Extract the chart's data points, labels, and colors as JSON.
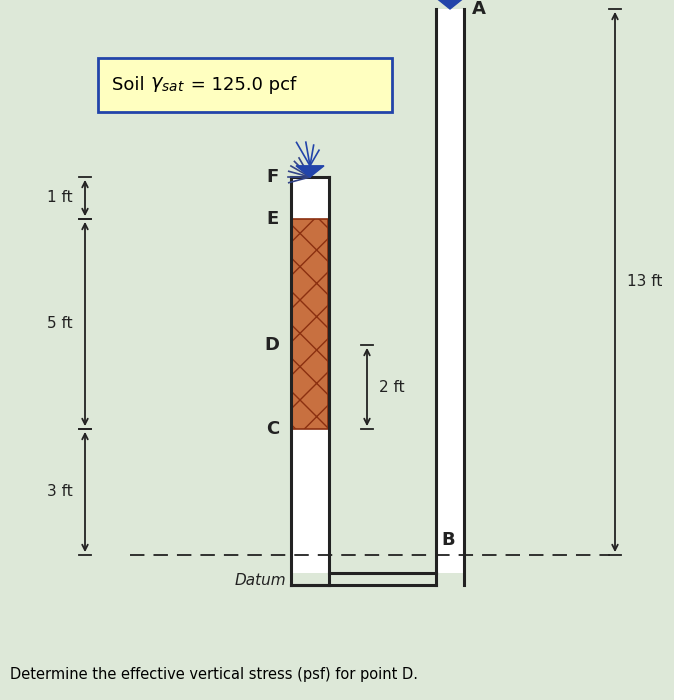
{
  "title_text": "Soil ",
  "title_gamma": "γₛₐₜ",
  "title_eq": " = 125.0 pcf",
  "background_color": "#dde8d8",
  "question": "Determine the effective vertical stress (psf) for point D.",
  "dim_1ft_label": "1 ft",
  "dim_5ft_label": "5 ft",
  "dim_3ft_label": "3 ft",
  "dim_2ft_label": "2 ft",
  "dim_13ft_label": "13 ft",
  "datum_label": "Datum",
  "soil_fill_color": "#c87040",
  "soil_hatch": "x",
  "title_box_facecolor": "#ffffc0",
  "title_border_color": "#2244aa",
  "water_color": "#2244aa",
  "line_color": "#222222",
  "label_color": "#222222",
  "pipe_lw": 2.2,
  "scale": 0.058
}
